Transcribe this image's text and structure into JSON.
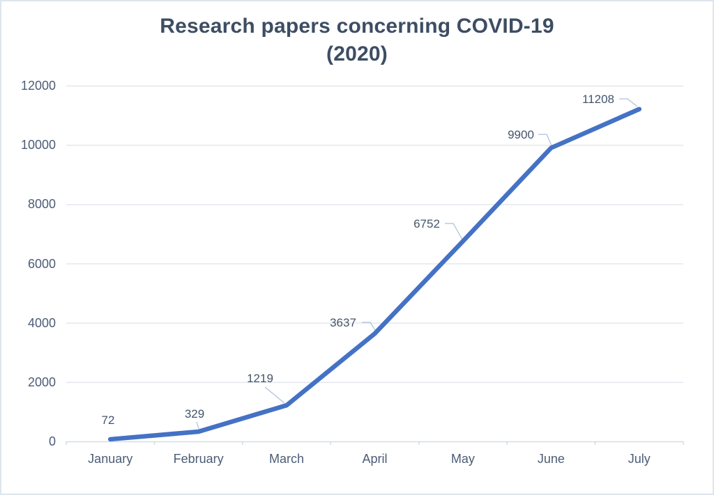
{
  "window": {
    "background": "#ffffff",
    "border_color": "#dde4ee"
  },
  "chart_data": {
    "type": "line",
    "title": "Research papers concerning COVID-19 (2020)",
    "title_lines": [
      "Research papers concerning COVID-19",
      "(2020)"
    ],
    "categories": [
      "January",
      "February",
      "March",
      "April",
      "May",
      "June",
      "July"
    ],
    "values": [
      72,
      329,
      1219,
      3637,
      6752,
      9900,
      11208
    ],
    "data_labels": [
      "72",
      "329",
      "1219",
      "3637",
      "6752",
      "9900",
      "11208"
    ],
    "xlabel": "",
    "ylabel": "",
    "ylim": [
      0,
      12000
    ],
    "yticks": [
      0,
      2000,
      4000,
      6000,
      8000,
      10000,
      12000
    ],
    "grid": true,
    "legend": "none"
  },
  "colors": {
    "line": "#4472c4",
    "title_text": "#3d4d63",
    "axis_text": "#4c5c76",
    "data_label_text": "#44546a",
    "gridline": "#e3e8ee",
    "axis_line": "#d4dbe4",
    "leader_line": "#aebfda"
  }
}
